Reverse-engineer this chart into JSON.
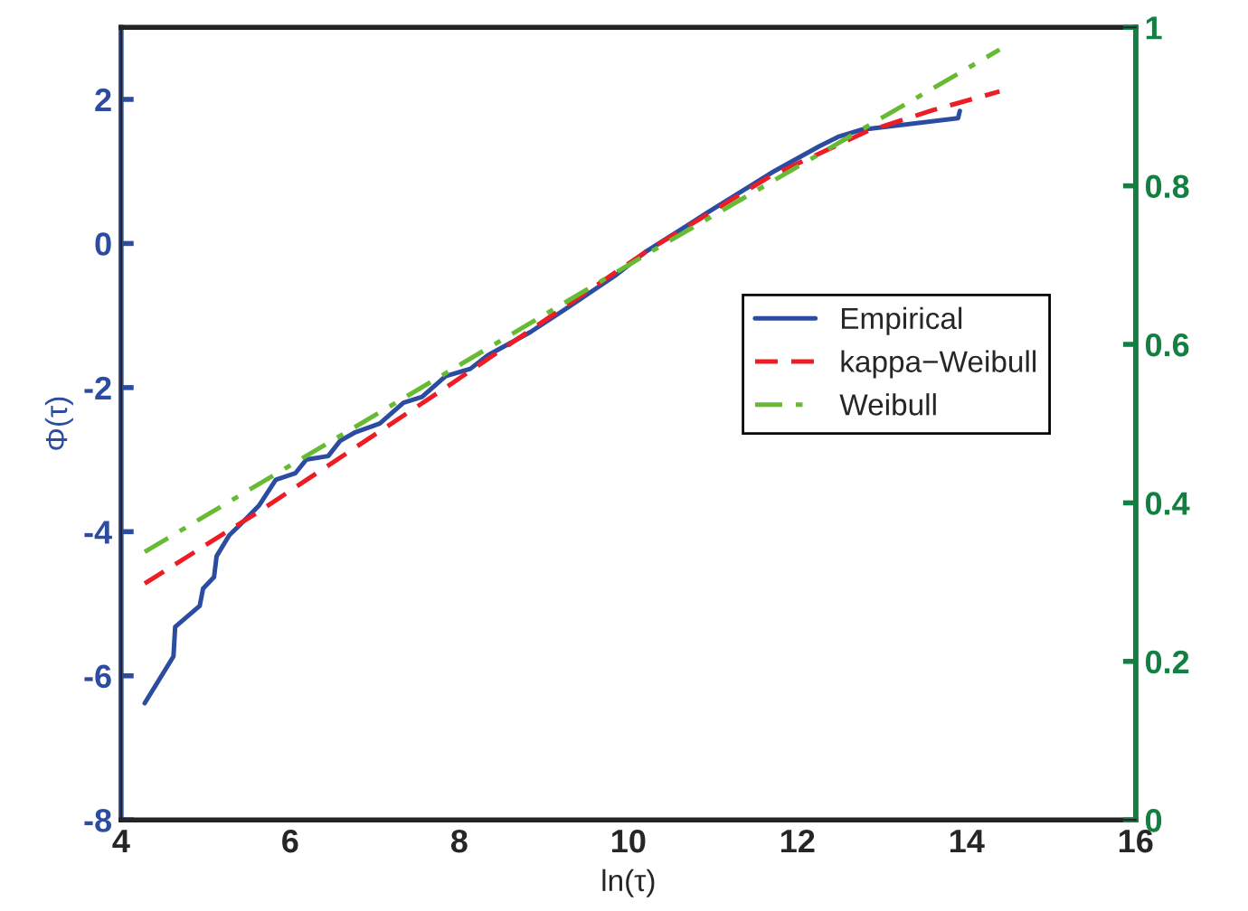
{
  "chart_data": {
    "type": "line",
    "xlabel": "ln(τ)",
    "ylabel": "Φ(τ)",
    "xlim": [
      4,
      16
    ],
    "xticks": [
      4,
      6,
      8,
      10,
      12,
      14,
      16
    ],
    "ylim": [
      -8,
      3
    ],
    "yticks": [
      -8,
      -6,
      -4,
      -2,
      0,
      2
    ],
    "y2lim": [
      0,
      1
    ],
    "y2ticks": [
      0,
      0.2,
      0.4,
      0.6,
      0.8,
      1
    ],
    "legend": "center right",
    "grid": false,
    "series": [
      {
        "name": "Empirical",
        "color": "#2b4ca0",
        "line_style": "solid",
        "x": [
          4.28,
          4.62,
          4.64,
          4.93,
          4.97,
          5.1,
          5.13,
          5.28,
          5.42,
          5.63,
          5.83,
          6.06,
          6.19,
          6.45,
          6.59,
          6.77,
          7.06,
          7.34,
          7.56,
          7.84,
          8.13,
          8.34,
          8.84,
          9.27,
          9.84,
          10.2,
          10.91,
          11.69,
          12.26,
          12.48,
          12.76,
          13.9,
          13.92
        ],
        "values": [
          -6.38,
          -5.73,
          -5.32,
          -5.03,
          -4.79,
          -4.63,
          -4.34,
          -4.05,
          -3.89,
          -3.64,
          -3.28,
          -3.19,
          -3.0,
          -2.95,
          -2.74,
          -2.62,
          -2.5,
          -2.21,
          -2.13,
          -1.84,
          -1.74,
          -1.55,
          -1.23,
          -0.9,
          -0.45,
          -0.12,
          0.41,
          0.98,
          1.35,
          1.48,
          1.58,
          1.74,
          1.84
        ]
      },
      {
        "name": "kappa−Weibull",
        "color": "#ee1c25",
        "line_style": "dashed",
        "x": [
          4.28,
          5.63,
          7.84,
          10.2,
          11.69,
          12.83,
          13.6,
          14.39
        ],
        "values": [
          -4.72,
          -3.72,
          -2.0,
          -0.12,
          0.94,
          1.56,
          1.85,
          2.11
        ]
      },
      {
        "name": "Weibull",
        "color": "#66bb33",
        "line_style": "dashdot",
        "x": [
          4.28,
          7.84,
          10.2,
          14.39
        ],
        "values": [
          -4.28,
          -1.8,
          -0.16,
          2.69
        ]
      }
    ]
  }
}
